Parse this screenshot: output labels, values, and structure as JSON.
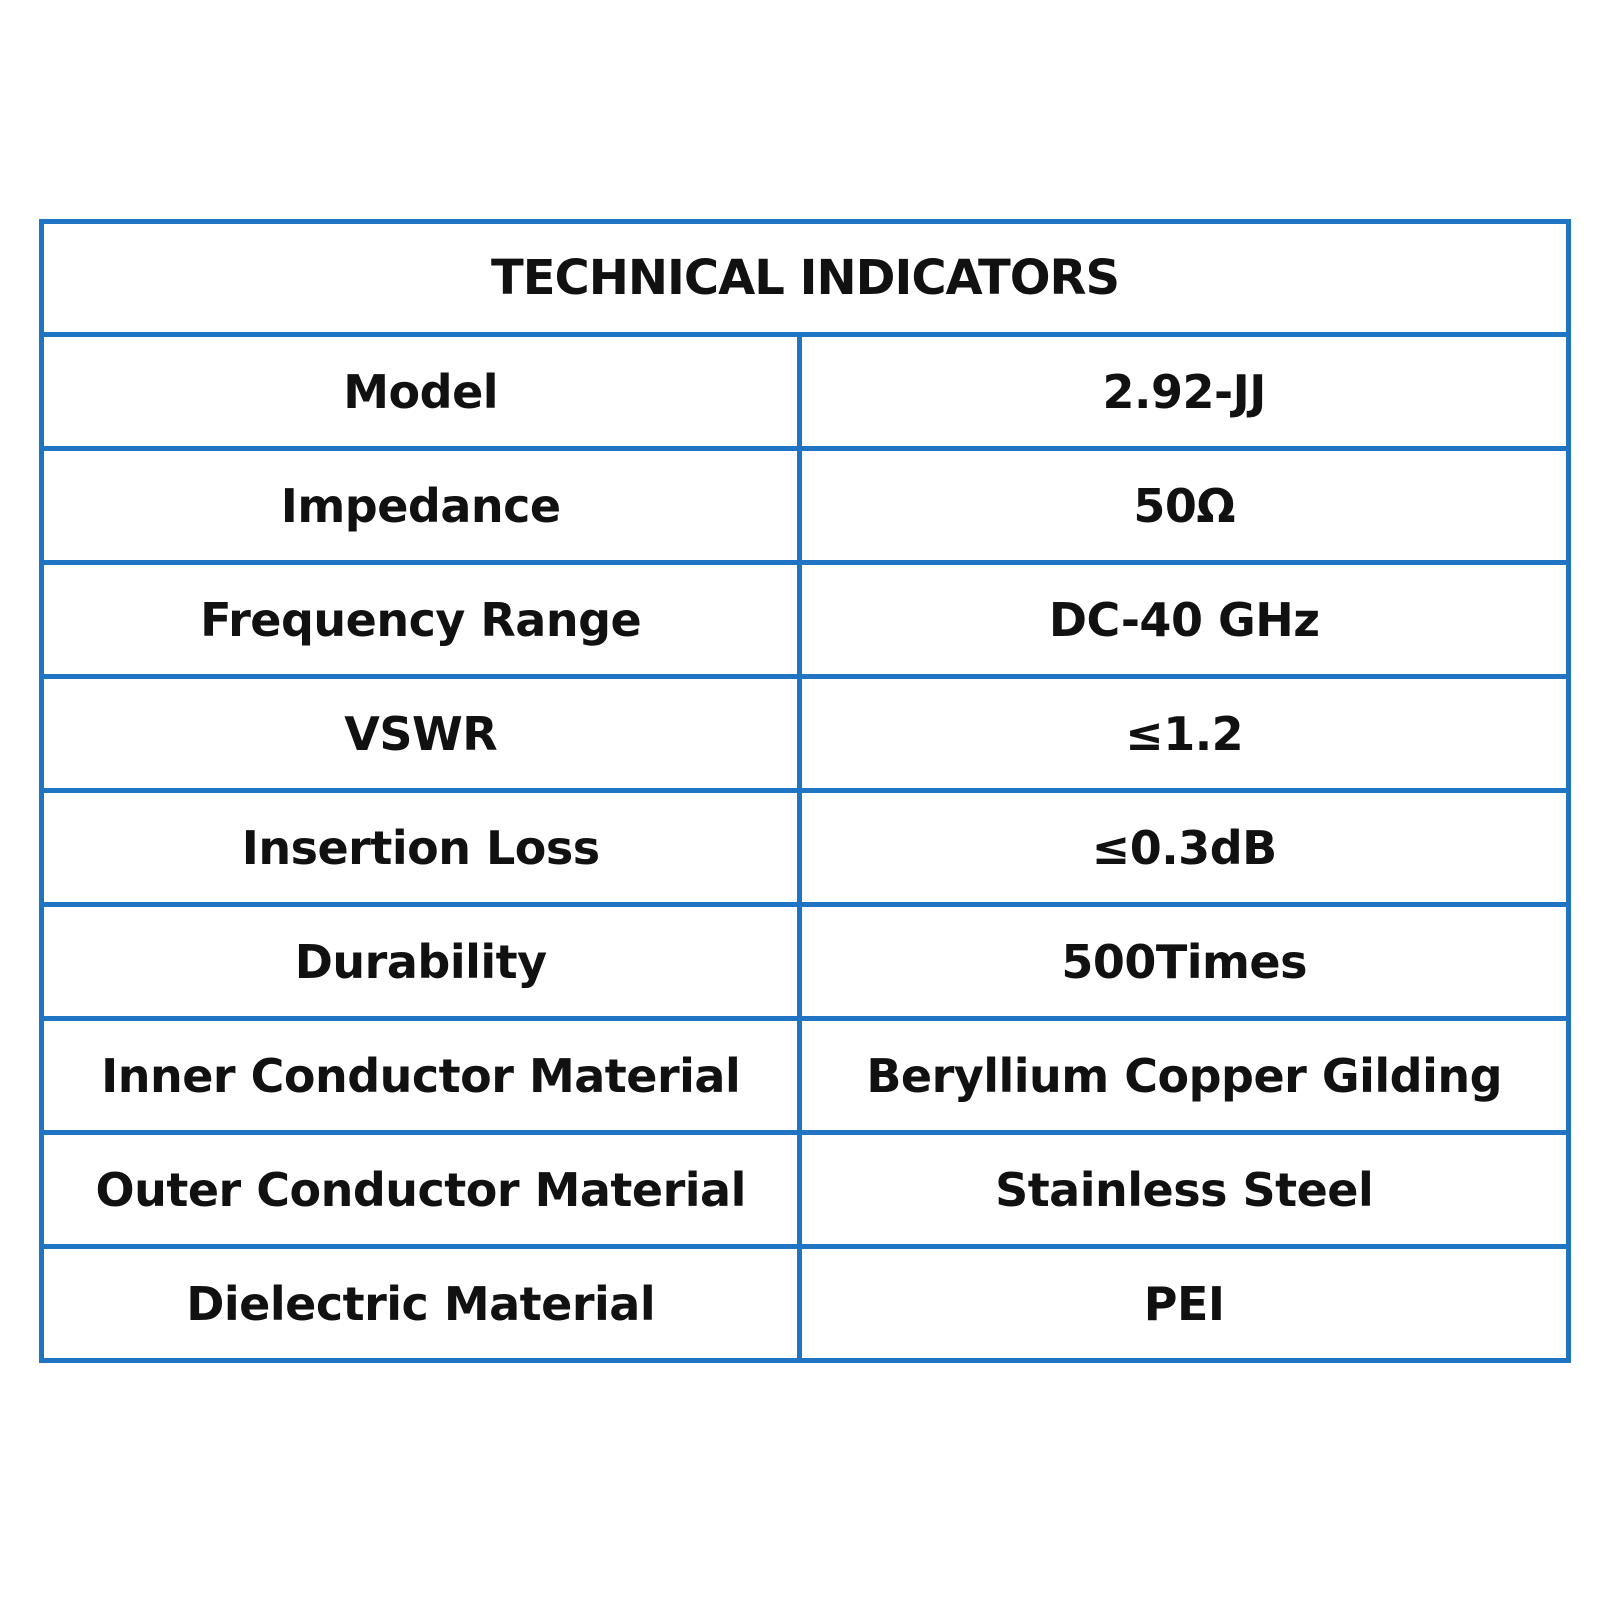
{
  "table": {
    "title": "TECHNICAL INDICATORS",
    "rows": [
      {
        "label": "Model",
        "value": "2.92-JJ"
      },
      {
        "label": "Impedance",
        "value": "50Ω"
      },
      {
        "label": "Frequency Range",
        "value": "DC-40 GHz"
      },
      {
        "label": "VSWR",
        "value": "≤1.2"
      },
      {
        "label": "Insertion Loss",
        "value": "≤0.3dB"
      },
      {
        "label": "Durability",
        "value": "500Times"
      },
      {
        "label": "Inner Conductor Material",
        "value": "Beryllium Copper Gilding"
      },
      {
        "label": "Outer Conductor Material",
        "value": "Stainless Steel"
      },
      {
        "label": "Dielectric Material",
        "value": "PEI"
      }
    ]
  },
  "colors": {
    "border": "#1f74c4",
    "text": "#111111",
    "background": "#ffffff"
  }
}
